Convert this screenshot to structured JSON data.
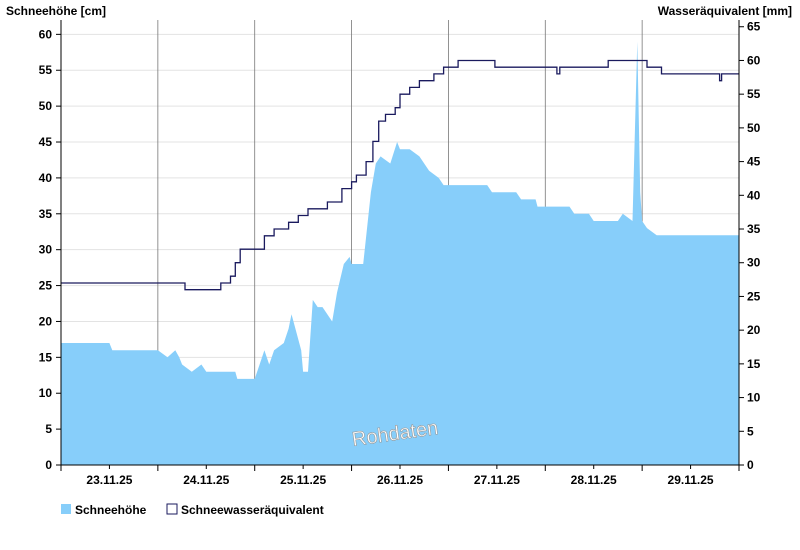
{
  "chart_data": {
    "type": "area",
    "y_left_label": "Schneehöhe [cm]",
    "y_right_label": "Wasseräquivalent [mm]",
    "watermark": "Rohdaten",
    "ylim_left": [
      0,
      62
    ],
    "ylim_right": [
      0,
      66
    ],
    "yticks_left": [
      0,
      5,
      10,
      15,
      20,
      25,
      30,
      35,
      40,
      45,
      50,
      55,
      60
    ],
    "yticks_right": [
      0,
      5,
      10,
      15,
      20,
      25,
      30,
      35,
      40,
      45,
      50,
      55,
      60,
      65
    ],
    "x_range_days": [
      22.5,
      29.5
    ],
    "day_labels": [
      {
        "label": "23.11.25",
        "day": 23
      },
      {
        "label": "24.11.25",
        "day": 24
      },
      {
        "label": "25.11.25",
        "day": 25
      },
      {
        "label": "26.11.25",
        "day": 26
      },
      {
        "label": "27.11.25",
        "day": 27
      },
      {
        "label": "28.11.25",
        "day": 28
      },
      {
        "label": "29.11.25",
        "day": 29
      }
    ],
    "legend_position": "bottom-left",
    "grid": true,
    "series": [
      {
        "name": "Schneehöhe",
        "axis": "left",
        "color": "#87cefa",
        "points": [
          [
            22.5,
            17
          ],
          [
            23.0,
            17
          ],
          [
            23.03,
            16
          ],
          [
            23.5,
            16
          ],
          [
            23.6,
            15
          ],
          [
            23.68,
            16
          ],
          [
            23.72,
            15
          ],
          [
            23.75,
            14
          ],
          [
            23.85,
            13
          ],
          [
            23.95,
            14
          ],
          [
            24.0,
            13
          ],
          [
            24.15,
            13
          ],
          [
            24.3,
            13
          ],
          [
            24.32,
            12
          ],
          [
            24.5,
            12
          ],
          [
            24.55,
            14
          ],
          [
            24.6,
            16
          ],
          [
            24.65,
            14
          ],
          [
            24.7,
            16
          ],
          [
            24.8,
            17
          ],
          [
            24.85,
            19
          ],
          [
            24.88,
            21
          ],
          [
            24.92,
            19
          ],
          [
            24.98,
            16
          ],
          [
            25.0,
            13
          ],
          [
            25.05,
            13
          ],
          [
            25.1,
            23
          ],
          [
            25.15,
            22
          ],
          [
            25.2,
            22
          ],
          [
            25.3,
            20
          ],
          [
            25.35,
            24
          ],
          [
            25.42,
            28
          ],
          [
            25.48,
            29
          ],
          [
            25.5,
            28
          ],
          [
            25.62,
            28
          ],
          [
            25.7,
            38
          ],
          [
            25.75,
            42
          ],
          [
            25.8,
            43
          ],
          [
            25.9,
            42
          ],
          [
            25.97,
            45
          ],
          [
            26.0,
            44
          ],
          [
            26.1,
            44
          ],
          [
            26.2,
            43
          ],
          [
            26.25,
            42
          ],
          [
            26.3,
            41
          ],
          [
            26.4,
            40
          ],
          [
            26.45,
            39
          ],
          [
            26.6,
            39
          ],
          [
            26.9,
            39
          ],
          [
            26.95,
            38
          ],
          [
            27.2,
            38
          ],
          [
            27.25,
            37
          ],
          [
            27.4,
            37
          ],
          [
            27.42,
            36
          ],
          [
            27.75,
            36
          ],
          [
            27.8,
            35
          ],
          [
            27.95,
            35
          ],
          [
            28.0,
            34
          ],
          [
            28.25,
            34
          ],
          [
            28.3,
            35
          ],
          [
            28.4,
            34
          ],
          [
            28.45,
            59
          ],
          [
            28.48,
            38
          ],
          [
            28.5,
            34
          ],
          [
            28.55,
            33
          ],
          [
            28.65,
            32
          ],
          [
            28.85,
            32
          ],
          [
            28.95,
            32
          ],
          [
            29.5,
            32
          ]
        ]
      },
      {
        "name": "Schneewasseräquivalent",
        "axis": "right",
        "color": "#1a1a5e",
        "points": [
          [
            22.5,
            27
          ],
          [
            23.5,
            27
          ],
          [
            23.75,
            27
          ],
          [
            23.78,
            26
          ],
          [
            24.1,
            26
          ],
          [
            24.15,
            27
          ],
          [
            24.25,
            28
          ],
          [
            24.3,
            30
          ],
          [
            24.35,
            32
          ],
          [
            24.55,
            32
          ],
          [
            24.6,
            34
          ],
          [
            24.7,
            35
          ],
          [
            24.8,
            35
          ],
          [
            24.85,
            36
          ],
          [
            24.95,
            37
          ],
          [
            25.05,
            38
          ],
          [
            25.15,
            38
          ],
          [
            25.25,
            39
          ],
          [
            25.4,
            41
          ],
          [
            25.5,
            42
          ],
          [
            25.55,
            43
          ],
          [
            25.65,
            45
          ],
          [
            25.72,
            48
          ],
          [
            25.78,
            51
          ],
          [
            25.85,
            52
          ],
          [
            25.95,
            53
          ],
          [
            26.0,
            55
          ],
          [
            26.1,
            56
          ],
          [
            26.2,
            57
          ],
          [
            26.35,
            58
          ],
          [
            26.45,
            59
          ],
          [
            26.6,
            60
          ],
          [
            26.9,
            60
          ],
          [
            26.98,
            59
          ],
          [
            27.2,
            59
          ],
          [
            27.5,
            59
          ],
          [
            27.62,
            58
          ],
          [
            27.65,
            59
          ],
          [
            27.9,
            59
          ],
          [
            28.1,
            59
          ],
          [
            28.15,
            60
          ],
          [
            28.5,
            60
          ],
          [
            28.55,
            59
          ],
          [
            28.65,
            59
          ],
          [
            28.7,
            58
          ],
          [
            28.9,
            58
          ],
          [
            29.25,
            58
          ],
          [
            29.3,
            57
          ],
          [
            29.32,
            58
          ],
          [
            29.5,
            58
          ]
        ]
      }
    ]
  }
}
